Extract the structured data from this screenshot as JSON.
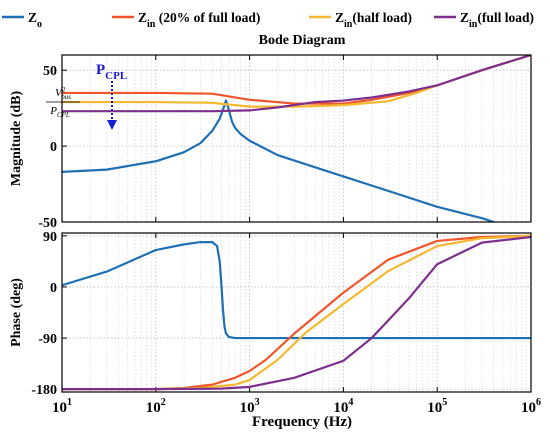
{
  "chart_data": {
    "type": "line",
    "title": "Bode Diagram",
    "legend": {
      "placement": "top",
      "entries": [
        {
          "main": "Z",
          "sub": "o",
          "rest": "",
          "color": "#1f6fb4"
        },
        {
          "main": "Z",
          "sub": "in",
          "rest": " (20% of full load)",
          "color": "#f0562a"
        },
        {
          "main": "Z",
          "sub": "in",
          "rest": "(half load)",
          "color": "#f5b82e"
        },
        {
          "main": "Z",
          "sub": "in",
          "rest": "(full load)",
          "color": "#7e2f8e"
        }
      ]
    },
    "xlabel": "Frequency  (Hz)",
    "x_scale": "log",
    "xlim": [
      10,
      1000000
    ],
    "x_ticks": [
      {
        "base": "10",
        "exp": "1"
      },
      {
        "base": "10",
        "exp": "2"
      },
      {
        "base": "10",
        "exp": "3"
      },
      {
        "base": "10",
        "exp": "4"
      },
      {
        "base": "10",
        "exp": "5"
      },
      {
        "base": "10",
        "exp": "6"
      }
    ],
    "panels": [
      {
        "name": "magnitude",
        "ylabel": "Magnitude (dB)",
        "ylim": [
          -50,
          60
        ],
        "y_ticks": [
          "50",
          "0",
          "-50"
        ],
        "grid": true,
        "annotation": {
          "label_main": "P",
          "label_sub": "CPL",
          "fraction_num": "V",
          "fraction_num_sup": "2",
          "fraction_num_sub": "bus",
          "fraction_den": "P",
          "fraction_den_sub": "CPL",
          "arrow_color": "#1a1ad0"
        },
        "series": [
          {
            "name": "Zo",
            "color": "#1f6fb4",
            "x": [
              10,
              30,
              100,
              200,
              300,
              400,
              480,
              520,
              560,
              600,
              650,
              700,
              800,
              1000,
              2000,
              5000,
              10000,
              30000,
              100000,
              300000,
              400000
            ],
            "y": [
              -17,
              -15.5,
              -10,
              -4,
              2,
              10,
              18,
              24,
              30,
              24,
              16,
              12,
              8,
              3.5,
              -6,
              -14,
              -20,
              -29.5,
              -40,
              -47.5,
              -50
            ]
          },
          {
            "name": "Zin (20% of full load)",
            "color": "#f0562a",
            "x": [
              10,
              100,
              400,
              1000,
              3000,
              10000,
              20000,
              50000,
              100000,
              300000,
              1000000
            ],
            "y": [
              35,
              35,
              34.5,
              30.5,
              28,
              28,
              30.5,
              35,
              40,
              50,
              60
            ]
          },
          {
            "name": "Zin (half load)",
            "color": "#f5b82e",
            "x": [
              10,
              100,
              400,
              1000,
              3000,
              10000,
              30000,
              60000,
              100000,
              300000,
              1000000
            ],
            "y": [
              29,
              29,
              28.5,
              26,
              26,
              27,
              29.5,
              35,
              40,
              50,
              60
            ]
          },
          {
            "name": "Zin (full load)",
            "color": "#7e2f8e",
            "x": [
              10,
              100,
              400,
              1000,
              2000,
              5000,
              10000,
              20000,
              50000,
              100000,
              300000,
              1000000
            ],
            "y": [
              23,
              23,
              23,
              23.5,
              25.5,
              29,
              30,
              32,
              36,
              40,
              50,
              60
            ]
          }
        ]
      },
      {
        "name": "phase",
        "ylabel": "Phase (deg)",
        "ylim": [
          -185,
          95
        ],
        "y_ticks": [
          "90",
          "0",
          "-90",
          "-180"
        ],
        "grid": true,
        "series": [
          {
            "name": "Zo",
            "color": "#1f6fb4",
            "x": [
              10,
              30,
              100,
              200,
              300,
              400,
              450,
              480,
              500,
              520,
              540,
              560,
              600,
              700,
              1000,
              10000,
              1000000
            ],
            "y": [
              3,
              27,
              65,
              75,
              79,
              79,
              72,
              45,
              5,
              -40,
              -70,
              -82,
              -88,
              -90,
              -90,
              -90,
              -90
            ]
          },
          {
            "name": "Zin (20% of full load)",
            "color": "#f0562a",
            "x": [
              10,
              100,
              200,
              400,
              700,
              1000,
              1500,
              3000,
              10000,
              30000,
              100000,
              300000,
              1000000
            ],
            "y": [
              -180,
              -180,
              -178,
              -172,
              -160,
              -148,
              -128,
              -82,
              -10,
              48,
              81,
              88,
              90
            ]
          },
          {
            "name": "Zin (half load)",
            "color": "#f5b82e",
            "x": [
              10,
              100,
              300,
              700,
              1000,
              2000,
              4000,
              10000,
              30000,
              100000,
              300000,
              1000000
            ],
            "y": [
              -180,
              -180,
              -178,
              -172,
              -164,
              -128,
              -80,
              -30,
              28,
              72,
              86,
              90
            ]
          },
          {
            "name": "Zin (full load)",
            "color": "#7e2f8e",
            "x": [
              10,
              100,
              500,
              1000,
              3000,
              10000,
              20000,
              50000,
              100000,
              300000,
              1000000
            ],
            "y": [
              -180,
              -180,
              -179,
              -176,
              -160,
              -130,
              -90,
              -20,
              40,
              78,
              88
            ]
          }
        ]
      }
    ]
  }
}
